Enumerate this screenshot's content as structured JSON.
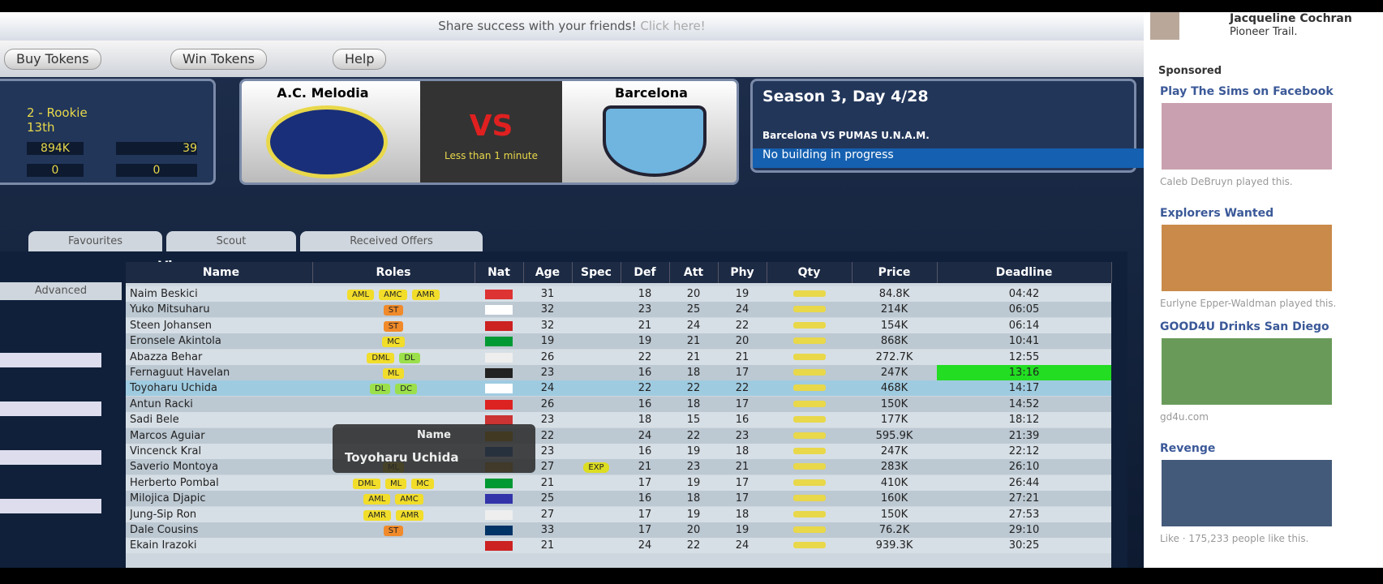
{
  "header": {
    "share_text": "Share success with your friends!",
    "click_here": "Click here!"
  },
  "nav": [
    "Buy Tokens",
    "Win Tokens",
    "Help"
  ],
  "profile": {
    "level": "2 - Rookie",
    "rank": "13th",
    "money": "894K",
    "tokens": "39",
    "stat_a": "0",
    "stat_b": "0"
  },
  "match": {
    "home": "A.C. Melodia",
    "away": "Barcelona",
    "vs": "VS",
    "time": "Less than 1 minute"
  },
  "season": {
    "title": "Season 3, Day 4/28",
    "next_match": "Barcelona VS PUMAS U.N.A.M.",
    "building": "No building in progress"
  },
  "tabs": [
    "Favourites",
    "Scout",
    "Received Offers"
  ],
  "view_label": "View",
  "advanced": "Advanced",
  "table": {
    "columns": [
      "Name",
      "Roles",
      "Nat",
      "Age",
      "Spec",
      "Def",
      "Att",
      "Phy",
      "Qty",
      "Price",
      "Deadline"
    ],
    "rows": [
      {
        "name": "Naim Beskici",
        "roles": [
          "AML",
          "AMC",
          "AMR"
        ],
        "age": 31,
        "def": 18,
        "att": 20,
        "phy": 19,
        "price": "84.8K",
        "deadline": "04:42"
      },
      {
        "name": "Yuko Mitsuharu",
        "roles": [
          "ST"
        ],
        "age": 32,
        "def": 23,
        "att": 25,
        "phy": 24,
        "price": "214K",
        "deadline": "06:05"
      },
      {
        "name": "Steen Johansen",
        "roles": [
          "ST"
        ],
        "age": 32,
        "def": 21,
        "att": 24,
        "phy": 22,
        "price": "154K",
        "deadline": "06:14"
      },
      {
        "name": "Eronsele Akintola",
        "roles": [
          "MC"
        ],
        "age": 19,
        "def": 19,
        "att": 21,
        "phy": 20,
        "price": "868K",
        "deadline": "10:41"
      },
      {
        "name": "Abazza Behar",
        "roles": [
          "DML",
          "DL"
        ],
        "age": 26,
        "def": 22,
        "att": 21,
        "phy": 21,
        "price": "272.7K",
        "deadline": "12:55"
      },
      {
        "name": "Fernaguut Havelan",
        "roles": [
          "ML"
        ],
        "age": 23,
        "def": 16,
        "att": 18,
        "phy": 17,
        "price": "247K",
        "deadline": "13:16"
      },
      {
        "name": "Toyoharu Uchida",
        "roles": [
          "DL",
          "DC"
        ],
        "age": 24,
        "def": 22,
        "att": 22,
        "phy": 22,
        "price": "468K",
        "deadline": "14:17"
      },
      {
        "name": "Antun Racki",
        "roles": [],
        "age": 26,
        "def": 16,
        "att": 18,
        "phy": 17,
        "price": "150K",
        "deadline": "14:52"
      },
      {
        "name": "Sadi Bele",
        "roles": [],
        "age": 23,
        "def": 18,
        "att": 15,
        "phy": 16,
        "price": "177K",
        "deadline": "18:12"
      },
      {
        "name": "Marcos Aguiar",
        "roles": [],
        "age": 22,
        "def": 24,
        "att": 22,
        "phy": 23,
        "price": "595.9K",
        "deadline": "21:39"
      },
      {
        "name": "Vincenck Kral",
        "roles": [],
        "age": 23,
        "def": 16,
        "att": 19,
        "phy": 18,
        "price": "247K",
        "deadline": "22:12"
      },
      {
        "name": "Saverio Montoya",
        "roles": [
          "ML"
        ],
        "age": 27,
        "spec": "EXP",
        "def": 21,
        "att": 23,
        "phy": 21,
        "price": "283K",
        "deadline": "26:10"
      },
      {
        "name": "Herberto Pombal",
        "roles": [
          "DML",
          "ML",
          "MC"
        ],
        "age": 21,
        "def": 17,
        "att": 19,
        "phy": 17,
        "price": "410K",
        "deadline": "26:44"
      },
      {
        "name": "Milojica Djapic",
        "roles": [
          "AML",
          "AMC"
        ],
        "age": 25,
        "def": 16,
        "att": 18,
        "phy": 17,
        "price": "160K",
        "deadline": "27:21"
      },
      {
        "name": "Jung-Sip Ron",
        "roles": [
          "AMR",
          "AMR"
        ],
        "age": 27,
        "def": 17,
        "att": 19,
        "phy": 18,
        "price": "150K",
        "deadline": "27:53"
      },
      {
        "name": "Dale Cousins",
        "roles": [
          "ST"
        ],
        "age": 33,
        "def": 17,
        "att": 20,
        "phy": 19,
        "price": "76.2K",
        "deadline": "29:10"
      },
      {
        "name": "Ekain Irazoki",
        "roles": [],
        "age": 21,
        "def": 24,
        "att": 22,
        "phy": 24,
        "price": "939.3K",
        "deadline": "30:25"
      }
    ]
  },
  "tooltip": {
    "title": "Name",
    "text": "Toyoharu Uchida"
  },
  "sidebar": {
    "user": "Jacqueline Cochran",
    "game": "Pioneer Trail.",
    "sponsored": "Sponsored",
    "ads": [
      {
        "title": "Play The Sims on Facebook",
        "note": "Caleb DeBruyn played this."
      },
      {
        "title": "Explorers Wanted",
        "note": "Eurlyne Epper-Waldman played this."
      },
      {
        "title": "GOOD4U Drinks San Diego",
        "note": "gd4u.com"
      },
      {
        "title": "Revenge",
        "note": "Like · 175,233 people like this."
      }
    ]
  }
}
